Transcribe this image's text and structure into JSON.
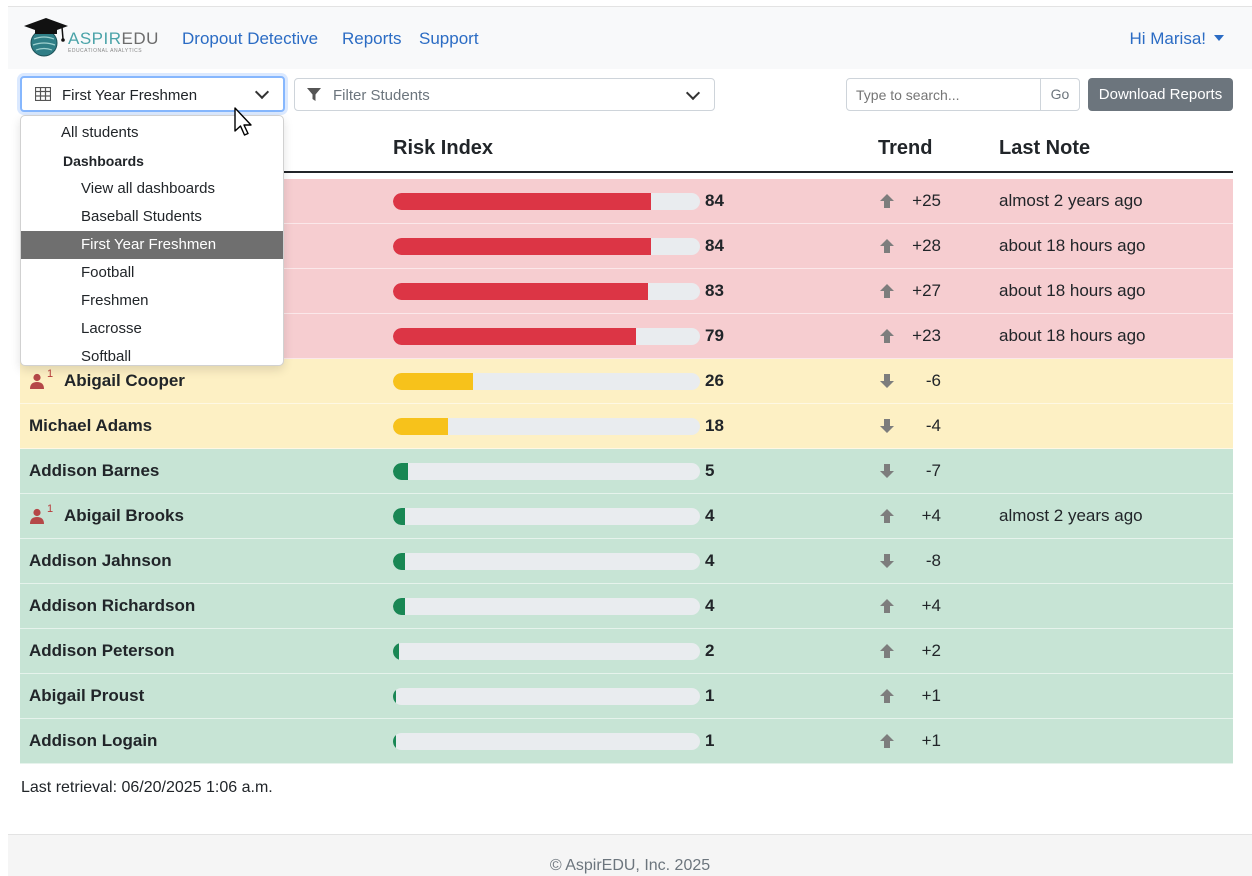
{
  "brand": {
    "name": "ASPIREDU",
    "name_a": "ASPIR",
    "name_b": "EDU",
    "tagline": "EDUCATIONAL ANALYTICS"
  },
  "nav": {
    "links": [
      "Dropout Detective",
      "Reports",
      "Support"
    ],
    "user": "Hi Marisa!"
  },
  "toolbar": {
    "dashboard_selected": "First Year Freshmen",
    "filter_placeholder": "Filter Students",
    "search_placeholder": "Type to search...",
    "go_label": "Go",
    "download_label": "Download Reports"
  },
  "table": {
    "headers": {
      "risk": "Risk Index",
      "trend": "Trend",
      "note": "Last Note"
    },
    "rows": [
      {
        "name": "",
        "risk": 84,
        "trend": "+25",
        "direction": "up",
        "note": "almost 2 years ago",
        "level": "red",
        "flag": false
      },
      {
        "name": "",
        "risk": 84,
        "trend": "+28",
        "direction": "up",
        "note": "about 18 hours ago",
        "level": "red",
        "flag": false
      },
      {
        "name": "",
        "risk": 83,
        "trend": "+27",
        "direction": "up",
        "note": "about 18 hours ago",
        "level": "red",
        "flag": false
      },
      {
        "name": "",
        "risk": 79,
        "trend": "+23",
        "direction": "up",
        "note": "about 18 hours ago",
        "level": "red",
        "flag": false
      },
      {
        "name": "Abigail Cooper",
        "risk": 26,
        "trend": "-6",
        "direction": "down",
        "note": "",
        "level": "yellow",
        "flag": true,
        "flag_count": "1"
      },
      {
        "name": "Michael Adams",
        "risk": 18,
        "trend": "-4",
        "direction": "down",
        "note": "",
        "level": "yellow",
        "flag": false
      },
      {
        "name": "Addison Barnes",
        "risk": 5,
        "trend": "-7",
        "direction": "down",
        "note": "",
        "level": "green",
        "flag": false
      },
      {
        "name": "Abigail Brooks",
        "risk": 4,
        "trend": "+4",
        "direction": "up",
        "note": "almost 2 years ago",
        "level": "green",
        "flag": true,
        "flag_count": "1"
      },
      {
        "name": "Addison Jahnson",
        "risk": 4,
        "trend": "-8",
        "direction": "down",
        "note": "",
        "level": "green",
        "flag": false
      },
      {
        "name": "Addison Richardson",
        "risk": 4,
        "trend": "+4",
        "direction": "up",
        "note": "",
        "level": "green",
        "flag": false
      },
      {
        "name": "Addison Peterson",
        "risk": 2,
        "trend": "+2",
        "direction": "up",
        "note": "",
        "level": "green",
        "flag": false
      },
      {
        "name": "Abigail Proust",
        "risk": 1,
        "trend": "+1",
        "direction": "up",
        "note": "",
        "level": "green",
        "flag": false
      },
      {
        "name": "Addison Logain",
        "risk": 1,
        "trend": "+1",
        "direction": "up",
        "note": "",
        "level": "green",
        "flag": false
      }
    ]
  },
  "menu": {
    "all_students": "All students",
    "header": "Dashboards",
    "items": [
      "View all dashboards",
      "Baseball Students",
      "First Year Freshmen",
      "Football",
      "Freshmen",
      "Lacrosse",
      "Softball"
    ],
    "active_index": 2
  },
  "last_retrieval": "Last retrieval: 06/20/2025 1:06 a.m.",
  "footer": "© AspirEDU, Inc. 2025",
  "colors": {
    "red_row": "#f6cdd0",
    "yellow_row": "#fdf0c4",
    "green_row": "#c7e4d5",
    "red_bar": "#dc3545",
    "yellow_bar": "#f7c21b",
    "green_bar": "#198754",
    "link": "#2b6cc4"
  }
}
